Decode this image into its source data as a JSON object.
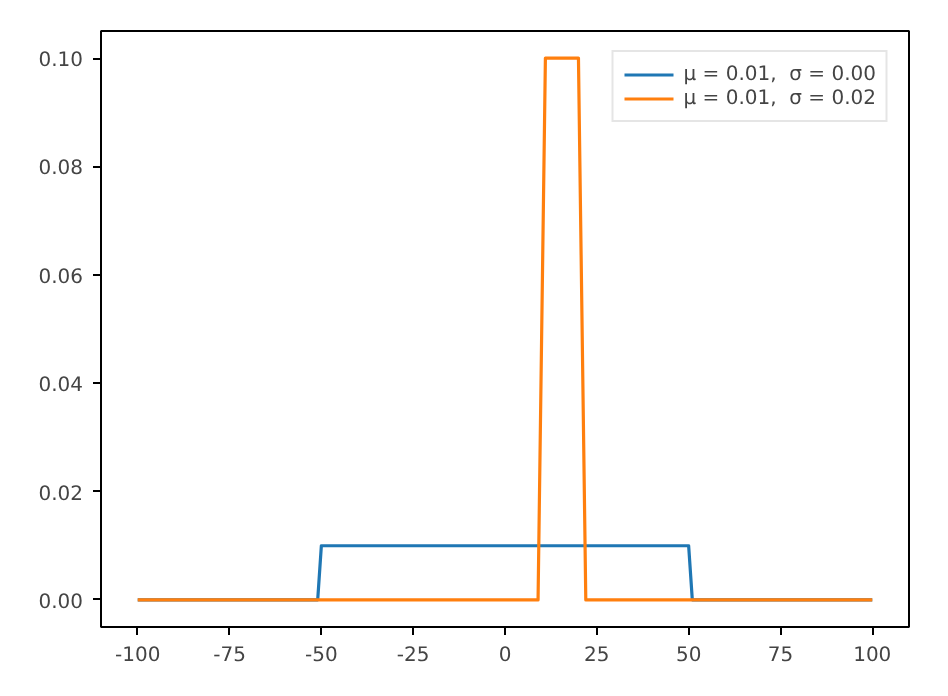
{
  "chart_data": {
    "type": "line",
    "xlim": [
      -110,
      110
    ],
    "ylim": [
      -0.005,
      0.105
    ],
    "xticks": [
      -100,
      -75,
      -50,
      -25,
      0,
      25,
      50,
      75,
      100
    ],
    "yticks": [
      {
        "value": 0,
        "label": "0.00"
      },
      {
        "value": 0.02,
        "label": "0.02"
      },
      {
        "value": 0.04,
        "label": "0.04"
      },
      {
        "value": 0.06,
        "label": "0.06"
      },
      {
        "value": 0.08,
        "label": "0.08"
      },
      {
        "value": 0.1,
        "label": "0.10"
      }
    ],
    "series": [
      {
        "name": "μ = 0.01,  σ = 0.00",
        "color": "#1f77b4",
        "x": [
          -100,
          -51,
          -50,
          50,
          51,
          100
        ],
        "values": [
          0,
          0,
          0.01,
          0.01,
          0,
          0
        ]
      },
      {
        "name": "μ = 0.01,  σ = 0.02",
        "color": "#ff7f0e",
        "x": [
          -100,
          9,
          11,
          20,
          22,
          100
        ],
        "values": [
          0,
          0,
          0.1,
          0.1,
          0,
          0
        ]
      }
    ],
    "grid": false,
    "legend": "top right",
    "marker": "none",
    "line_style": "solid"
  }
}
